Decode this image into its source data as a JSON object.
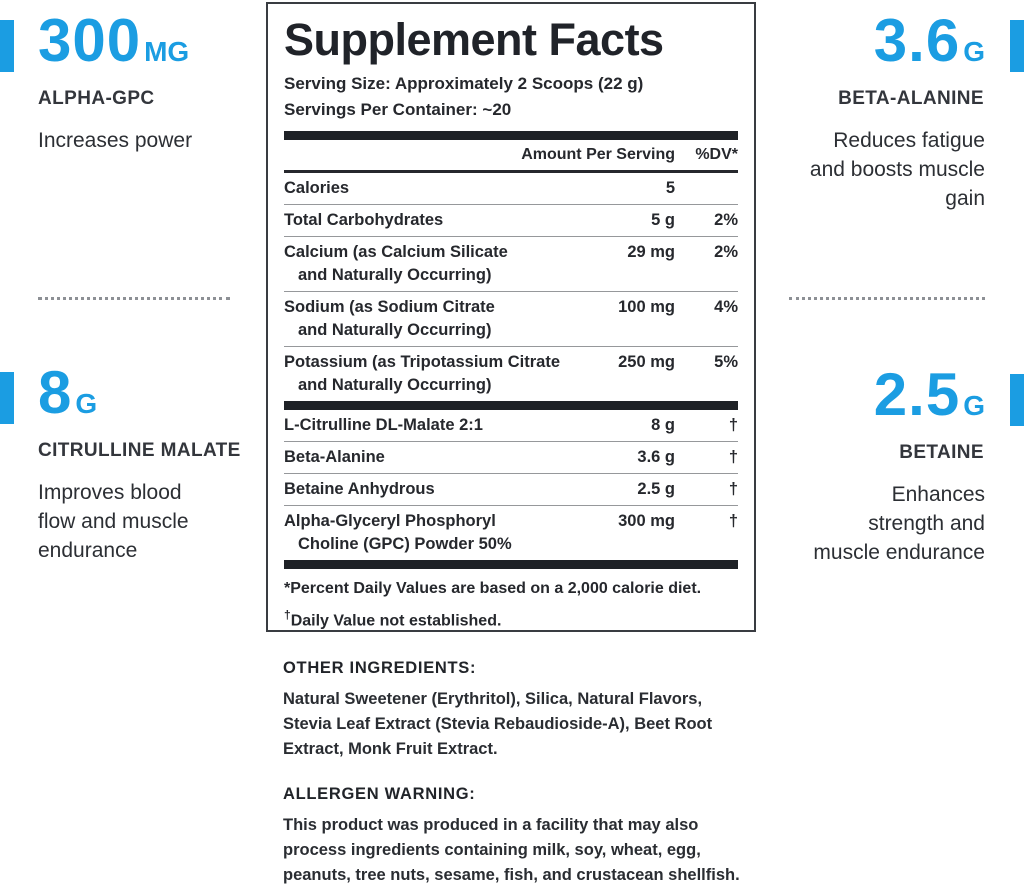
{
  "accent_color": "#1b9de2",
  "callouts": {
    "alpha_gpc": {
      "amount": "300",
      "unit": "MG",
      "name": "ALPHA-GPC",
      "description": "Increases power"
    },
    "beta_alanine": {
      "amount": "3.6",
      "unit": "G",
      "name": "BETA-ALANINE",
      "description": "Reduces fatigue\nand boosts muscle\ngain"
    },
    "citrulline": {
      "amount": "8",
      "unit": "G",
      "name": "CITRULLINE MALATE",
      "description": "Improves blood\nflow and muscle\nendurance"
    },
    "betaine": {
      "amount": "2.5",
      "unit": "G",
      "name": "BETAINE",
      "description": "Enhances\nstrength and\nmuscle endurance"
    }
  },
  "panel": {
    "title": "Supplement Facts",
    "serving_size": "Serving Size: Approximately 2 Scoops (22 g)",
    "servings_per_container": "Servings Per Container: ~20",
    "columns": {
      "amount": "Amount Per Serving",
      "dv": "%DV*"
    },
    "rows": [
      {
        "name": "Calories",
        "name2": "",
        "amount": "5",
        "dv": ""
      },
      {
        "name": "Total Carbohydrates",
        "name2": "",
        "amount": "5 g",
        "dv": "2%"
      },
      {
        "name": "Calcium (as Calcium Silicate",
        "name2": "and Naturally Occurring)",
        "amount": "29 mg",
        "dv": "2%"
      },
      {
        "name": "Sodium (as Sodium Citrate",
        "name2": "and Naturally Occurring)",
        "amount": "100 mg",
        "dv": "4%"
      },
      {
        "name": "Potassium (as Tripotassium Citrate",
        "name2": "and Naturally Occurring)",
        "amount": "250 mg",
        "dv": "5%"
      }
    ],
    "rows2": [
      {
        "name": "L-Citrulline DL-Malate 2:1",
        "name2": "",
        "amount": "8 g",
        "dv": "†"
      },
      {
        "name": "Beta-Alanine",
        "name2": "",
        "amount": "3.6 g",
        "dv": "†"
      },
      {
        "name": "Betaine Anhydrous",
        "name2": "",
        "amount": "2.5 g",
        "dv": "†"
      },
      {
        "name": "Alpha-Glyceryl Phosphoryl",
        "name2": "Choline (GPC) Powder 50%",
        "amount": "300 mg",
        "dv": "†"
      }
    ],
    "footnote1": "*Percent Daily Values are based on a 2,000 calorie diet.",
    "footnote2_symbol": "†",
    "footnote2": "Daily Value not established."
  },
  "other_ingredients": {
    "heading": "OTHER INGREDIENTS:",
    "lines": [
      "Natural Sweetener (Erythritol), Silica, Natural Flavors,",
      "Stevia Leaf Extract (Stevia Rebaudioside-A), Beet Root",
      "Extract, Monk Fruit Extract."
    ]
  },
  "allergen_warning": {
    "heading": "ALLERGEN WARNING:",
    "lines": [
      "This product was produced in a facility that may also",
      "process ingredients containing milk, soy, wheat, egg,",
      "peanuts, tree nuts, sesame, fish, and crustacean shellfish."
    ]
  }
}
